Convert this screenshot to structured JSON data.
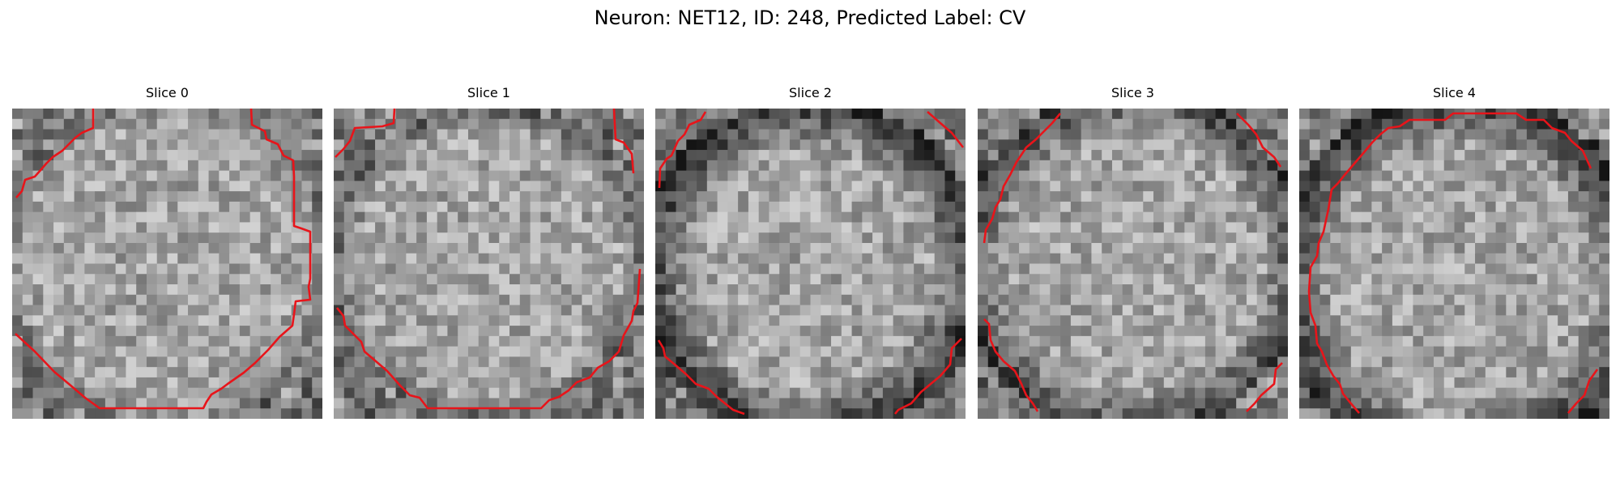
{
  "figure": {
    "title": "Neuron: NET12, ID: 248, Predicted Label: CV"
  },
  "panels": [
    {
      "title": "Slice 0"
    },
    {
      "title": "Slice 1"
    },
    {
      "title": "Slice 2"
    },
    {
      "title": "Slice 3"
    },
    {
      "title": "Slice 4"
    }
  ],
  "colors": {
    "contour": "#e8141a",
    "background": "#ffffff"
  }
}
